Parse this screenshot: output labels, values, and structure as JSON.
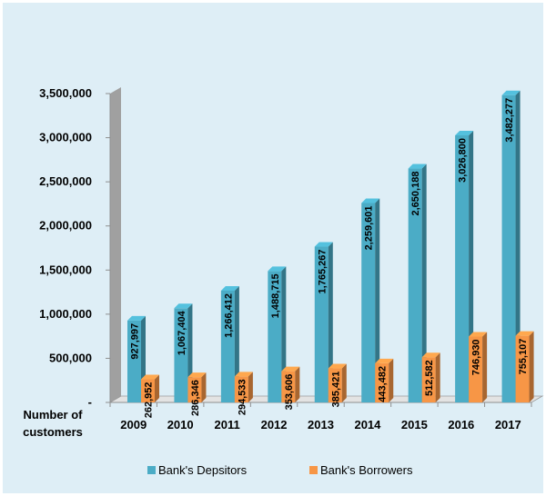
{
  "chart_data": {
    "type": "bar",
    "categories": [
      "2009",
      "2010",
      "2011",
      "2012",
      "2013",
      "2014",
      "2015",
      "2016",
      "2017"
    ],
    "series": [
      {
        "name": "Bank's Depsitors",
        "color": "#4bacc6",
        "values": [
          927997,
          1067404,
          1266412,
          1488715,
          1765267,
          2259601,
          2650188,
          3026800,
          3482277
        ],
        "labels": [
          "927,997",
          "1,067,404",
          "1,266,412",
          "1,488,715",
          "1,765,267",
          "2,259,601",
          "2,650,188",
          "3,026,800",
          "3,482,277"
        ]
      },
      {
        "name": "Bank's Borrowers",
        "color": "#f79646",
        "values": [
          262952,
          286346,
          294533,
          353606,
          385421,
          443482,
          512582,
          746930,
          755107
        ],
        "labels": [
          "262,952",
          "286,346",
          "294,533",
          "353,606",
          "385,421",
          "443,482",
          "512,582",
          "746,930",
          "755,107"
        ]
      }
    ],
    "ylim": [
      0,
      3500000
    ],
    "yticks": [
      0,
      500000,
      1000000,
      1500000,
      2000000,
      2500000,
      3000000,
      3500000
    ],
    "ytick_labels": [
      "-",
      "500,000",
      "1,000,000",
      "1,500,000",
      "2,000,000",
      "2,500,000",
      "3,000,000",
      "3,500,000"
    ],
    "corner_label": [
      "Number of",
      "customers"
    ],
    "grid": false,
    "legend_position": "bottom",
    "three_d": true
  }
}
